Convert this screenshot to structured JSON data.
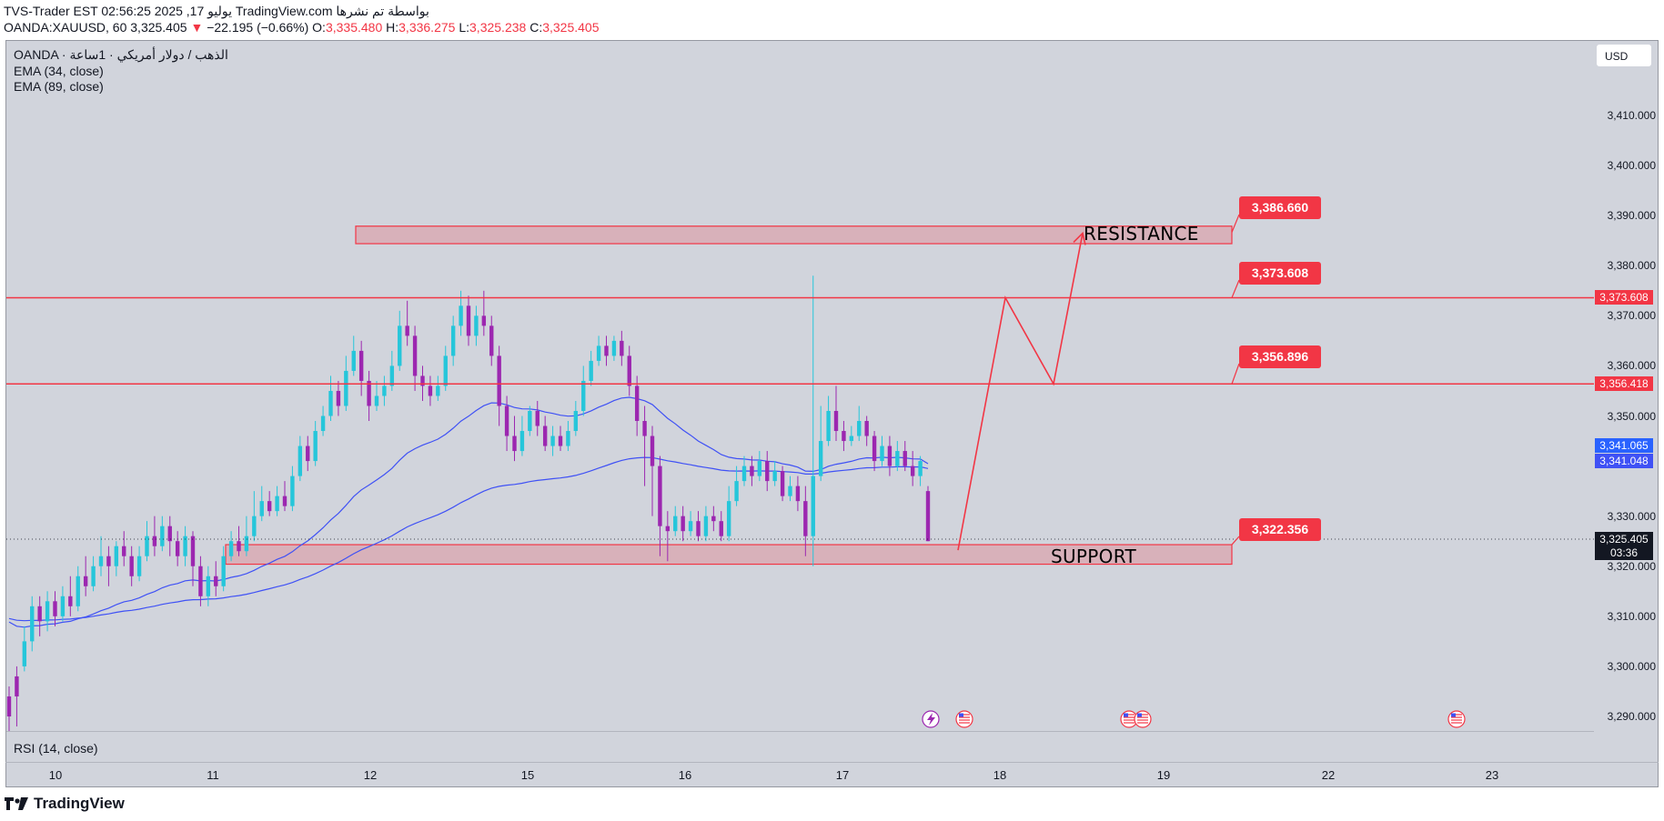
{
  "header": {
    "line1": "TVS-Trader EST 02:56:25 2025 ,17 يوليو TradingView.com بواسطة تم نشرها",
    "symbol_line": "OANDA:XAUUSD, 60 3,325.405",
    "change": "−22.195 (−0.66%)",
    "ohlc": {
      "o_label": "O:",
      "o": "3,335.480",
      "h_label": "H:",
      "h": "3,336.275",
      "l_label": "L:",
      "l": "3,325.238",
      "c_label": "C:",
      "c": "3,325.405"
    }
  },
  "legend": {
    "title": "OANDA · الذهب / دولار أمريكي · 1ساعة",
    "ema1": "EMA (34, close)",
    "ema2": "EMA (89, close)"
  },
  "currency_button": "USD",
  "price_axis": [
    "3,410.000",
    "3,400.000",
    "3,390.000",
    "3,380.000",
    "3,370.000",
    "3,360.000",
    "3,350.000",
    "3,330.000",
    "3,320.000",
    "3,310.000",
    "3,300.000",
    "3,290.000"
  ],
  "date_axis": [
    "10",
    "11",
    "12",
    "15",
    "16",
    "17",
    "18",
    "19",
    "22",
    "23"
  ],
  "price_labels": {
    "resistance_line": "3,373.608",
    "mid_line": "3,356.418",
    "ema_fast": "3,341.065",
    "ema_slow": "3,341.048",
    "current_price": "3,325.405",
    "countdown": "03:36"
  },
  "callouts": {
    "resistance_top": "3,386.660",
    "resistance_line": "3,373.608",
    "mid_line": "3,356.896",
    "support": "3,322.356"
  },
  "zones": {
    "resistance": "RESISTANCE",
    "support": "SUPPORT"
  },
  "rsi_label": "RSI (14, close)",
  "brand": "TradingView",
  "colors": {
    "up": "#26c6da",
    "down": "#9c27b0",
    "line": "#f23645",
    "ema": "#3f51f5",
    "pane": "#d1d4dc"
  },
  "chart_data": {
    "type": "candlestick",
    "symbol": "XAUUSD",
    "timeframe": "60",
    "ylim": [
      3286,
      3418
    ],
    "levels": {
      "resistance_zone": [
        3384.4,
        3387.9
      ],
      "resistance_line": 3373.6,
      "mid_line": 3356.4,
      "support_zone": [
        3320.4,
        3324.3
      ]
    },
    "candles": [
      [
        3294,
        3290,
        3296,
        3286
      ],
      [
        3298,
        3294,
        3300,
        3288
      ],
      [
        3300,
        3305,
        3308,
        3299
      ],
      [
        3305,
        3312,
        3314,
        3303
      ],
      [
        3312,
        3309,
        3314,
        3306
      ],
      [
        3309,
        3313,
        3315,
        3307
      ],
      [
        3313,
        3310,
        3315,
        3308
      ],
      [
        3310,
        3314,
        3316,
        3309
      ],
      [
        3314,
        3312,
        3318,
        3310
      ],
      [
        3312,
        3318,
        3320,
        3311
      ],
      [
        3318,
        3316,
        3322,
        3314
      ],
      [
        3316,
        3320,
        3322,
        3315
      ],
      [
        3320,
        3322,
        3326,
        3318
      ],
      [
        3322,
        3320,
        3324,
        3316
      ],
      [
        3320,
        3324,
        3325,
        3318
      ],
      [
        3324,
        3322,
        3327,
        3320
      ],
      [
        3322,
        3318,
        3324,
        3316
      ],
      [
        3318,
        3322,
        3324,
        3317
      ],
      [
        3322,
        3326,
        3329,
        3321
      ],
      [
        3326,
        3324,
        3330,
        3322
      ],
      [
        3324,
        3328,
        3330,
        3323
      ],
      [
        3328,
        3325,
        3330,
        3322
      ],
      [
        3325,
        3322,
        3327,
        3320
      ],
      [
        3322,
        3326,
        3328,
        3320
      ],
      [
        3326,
        3320,
        3327,
        3316
      ],
      [
        3320,
        3314,
        3322,
        3312
      ],
      [
        3314,
        3318,
        3320,
        3312
      ],
      [
        3318,
        3316,
        3321,
        3314
      ],
      [
        3316,
        3322,
        3324,
        3315
      ],
      [
        3322,
        3325,
        3327,
        3321
      ],
      [
        3325,
        3323,
        3328,
        3322
      ],
      [
        3323,
        3326,
        3330,
        3322
      ],
      [
        3326,
        3330,
        3335,
        3325
      ],
      [
        3330,
        3333,
        3336,
        3329
      ],
      [
        3333,
        3331,
        3335,
        3330
      ],
      [
        3331,
        3334,
        3336,
        3330
      ],
      [
        3334,
        3332,
        3337,
        3331
      ],
      [
        3332,
        3338,
        3340,
        3331
      ],
      [
        3338,
        3344,
        3346,
        3337
      ],
      [
        3344,
        3341,
        3346,
        3339
      ],
      [
        3341,
        3347,
        3349,
        3340
      ],
      [
        3347,
        3350,
        3352,
        3346
      ],
      [
        3350,
        3355,
        3358,
        3349
      ],
      [
        3355,
        3352,
        3357,
        3350
      ],
      [
        3352,
        3359,
        3362,
        3351
      ],
      [
        3359,
        3363,
        3366,
        3358
      ],
      [
        3363,
        3357,
        3365,
        3354
      ],
      [
        3357,
        3352,
        3359,
        3349
      ],
      [
        3352,
        3354,
        3357,
        3351
      ],
      [
        3354,
        3356,
        3358,
        3352
      ],
      [
        3356,
        3360,
        3363,
        3355
      ],
      [
        3360,
        3368,
        3371,
        3359
      ],
      [
        3368,
        3366,
        3373,
        3364
      ],
      [
        3366,
        3358,
        3368,
        3355
      ],
      [
        3358,
        3356,
        3360,
        3353
      ],
      [
        3356,
        3354,
        3358,
        3352
      ],
      [
        3354,
        3356,
        3358,
        3353
      ],
      [
        3356,
        3362,
        3364,
        3355
      ],
      [
        3362,
        3368,
        3370,
        3360
      ],
      [
        3368,
        3372,
        3375,
        3366
      ],
      [
        3372,
        3366,
        3374,
        3364
      ],
      [
        3366,
        3370,
        3372,
        3364
      ],
      [
        3370,
        3368,
        3375,
        3366
      ],
      [
        3368,
        3362,
        3370,
        3360
      ],
      [
        3362,
        3352,
        3364,
        3348
      ],
      [
        3352,
        3346,
        3354,
        3343
      ],
      [
        3346,
        3343,
        3350,
        3341
      ],
      [
        3343,
        3347,
        3350,
        3342
      ],
      [
        3347,
        3351,
        3352,
        3346
      ],
      [
        3351,
        3348,
        3353,
        3346
      ],
      [
        3348,
        3344,
        3350,
        3343
      ],
      [
        3344,
        3346,
        3348,
        3342
      ],
      [
        3346,
        3344,
        3348,
        3343
      ],
      [
        3344,
        3347,
        3349,
        3343
      ],
      [
        3347,
        3351,
        3353,
        3346
      ],
      [
        3351,
        3357,
        3360,
        3350
      ],
      [
        3357,
        3361,
        3363,
        3356
      ],
      [
        3361,
        3364,
        3366,
        3360
      ],
      [
        3364,
        3362,
        3366,
        3360
      ],
      [
        3362,
        3365,
        3366,
        3361
      ],
      [
        3365,
        3362,
        3367,
        3360
      ],
      [
        3362,
        3356,
        3364,
        3354
      ],
      [
        3356,
        3349,
        3358,
        3346
      ],
      [
        3349,
        3346,
        3352,
        3336
      ],
      [
        3346,
        3340,
        3348,
        3330
      ],
      [
        3340,
        3328,
        3342,
        3322
      ],
      [
        3328,
        3327,
        3331,
        3321
      ],
      [
        3327,
        3330,
        3332,
        3326
      ],
      [
        3330,
        3327,
        3332,
        3325
      ],
      [
        3327,
        3329,
        3331,
        3326
      ],
      [
        3329,
        3326,
        3331,
        3325
      ],
      [
        3326,
        3330,
        3332,
        3325
      ],
      [
        3330,
        3329,
        3332,
        3327
      ],
      [
        3329,
        3326,
        3331,
        3325
      ],
      [
        3326,
        3333,
        3336,
        3325
      ],
      [
        3333,
        3337,
        3340,
        3332
      ],
      [
        3337,
        3340,
        3342,
        3336
      ],
      [
        3340,
        3338,
        3342,
        3336
      ],
      [
        3338,
        3341,
        3343,
        3337
      ],
      [
        3341,
        3337,
        3343,
        3335
      ],
      [
        3337,
        3339,
        3341,
        3336
      ],
      [
        3339,
        3334,
        3340,
        3333
      ],
      [
        3334,
        3336,
        3338,
        3333
      ],
      [
        3336,
        3333,
        3338,
        3331
      ],
      [
        3333,
        3326,
        3336,
        3322
      ],
      [
        3326,
        3338,
        3378,
        3320
      ],
      [
        3338,
        3345,
        3352,
        3337
      ],
      [
        3345,
        3351,
        3354,
        3344
      ],
      [
        3351,
        3347,
        3356,
        3345
      ],
      [
        3347,
        3345,
        3349,
        3343
      ],
      [
        3345,
        3346,
        3348,
        3344
      ],
      [
        3346,
        3349,
        3352,
        3345
      ],
      [
        3349,
        3346,
        3350,
        3344
      ],
      [
        3346,
        3341,
        3347,
        3339
      ],
      [
        3341,
        3344,
        3346,
        3340
      ],
      [
        3344,
        3340,
        3346,
        3338
      ],
      [
        3340,
        3343,
        3345,
        3339
      ],
      [
        3343,
        3340,
        3345,
        3339
      ],
      [
        3340,
        3338,
        3343,
        3336
      ],
      [
        3338,
        3341,
        3342,
        3336
      ],
      [
        3335,
        3325,
        3336,
        3325
      ]
    ]
  }
}
